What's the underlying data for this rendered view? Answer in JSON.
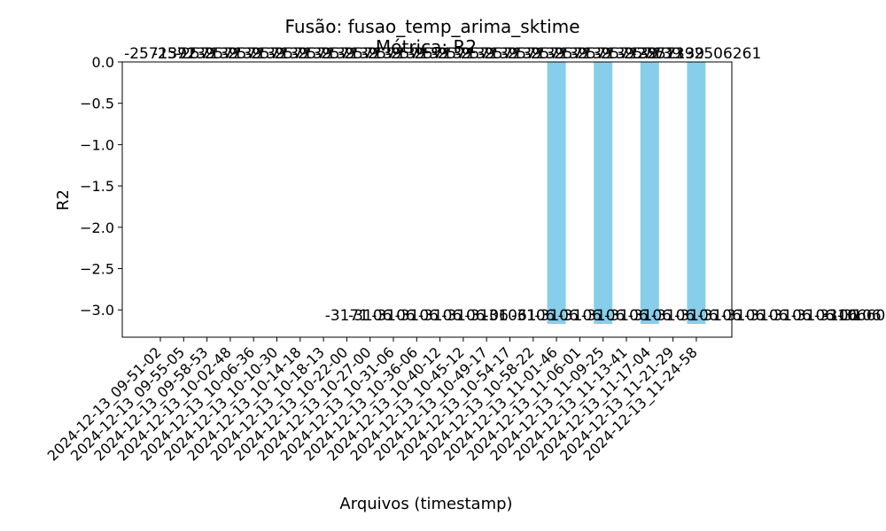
{
  "chart_data": {
    "type": "bar",
    "title": "Fusão: fusao_temp_arima_sktime",
    "subtitle": "Métrica: R2",
    "xlabel": "Arquivos (timestamp)",
    "ylabel": "R2",
    "ylim": [
      -3.33,
      0.0
    ],
    "yticks": [
      0.0,
      -0.5,
      -1.0,
      -1.5,
      -2.0,
      -2.5,
      -3.0
    ],
    "ytick_labels": [
      "0.0",
      "−0.5",
      "−1.0",
      "−1.5",
      "−2.0",
      "−2.5",
      "−3.0"
    ],
    "color": "#87CEEB",
    "grid": false,
    "categories": [
      "2024-12-13_09-51-02",
      "2024-12-13_09-55-05",
      "2024-12-13_09-58-53",
      "2024-12-13_10-02-48",
      "2024-12-13_10-06-36",
      "2024-12-13_10-10-30",
      "2024-12-13_10-14-18",
      "2024-12-13_10-18-13",
      "2024-12-13_10-22-00",
      "2024-12-13_10-27-00",
      "2024-12-13_10-31-06",
      "2024-12-13_10-36-06",
      "2024-12-13_10-40-12",
      "2024-12-13_10-45-12",
      "2024-12-13_10-49-17",
      "2024-12-13_10-54-17",
      "2024-12-13_10-58-22",
      "2024-12-13_11-01-46",
      "2024-12-13_11-06-01",
      "2024-12-13_11-09-25",
      "2024-12-13_11-13-41",
      "2024-12-13_11-17-04",
      "2024-12-13_11-21-29",
      "2024-12-13_11-24-58"
    ],
    "values": [
      null,
      null,
      null,
      null,
      null,
      null,
      null,
      null,
      null,
      null,
      null,
      null,
      null,
      null,
      null,
      null,
      null,
      -3.17,
      null,
      -3.17,
      null,
      -3.17,
      null,
      -3.17
    ],
    "top_labels": [
      "-2571392",
      "-257139",
      "-257139",
      "-257139",
      "-257139",
      "-257139",
      "-257139",
      "-257139",
      "-257139",
      "-257139",
      "-257139",
      "-257139",
      "-257139",
      "-257139",
      "-257139",
      "-257139",
      "-257139",
      "-257139",
      "-257139",
      "-257139",
      "-257139",
      "-257139",
      "-257139",
      "-2571392506261"
    ],
    "bottom_labels": [
      "-3171",
      "-3106",
      "-3106",
      "-3106",
      "-3106",
      "-3106",
      "-3106",
      "-31061",
      "-3106",
      "-3106",
      "-3106",
      "-3106",
      "-3106",
      "-3106",
      "-3106",
      "-3106",
      "-3106",
      "-3106",
      "-3106",
      "-3106",
      "-3106",
      "-3106",
      "-3106",
      "-310660000000"
    ]
  }
}
